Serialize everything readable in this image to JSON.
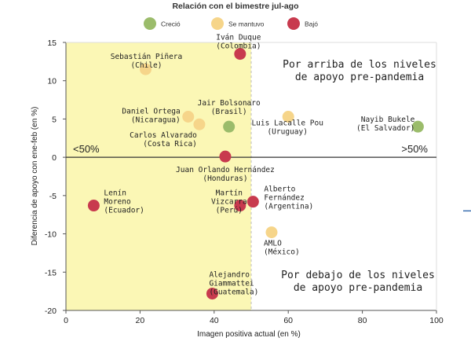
{
  "chart_data": {
    "type": "scatter",
    "title": "Relación con el bimestre jul-ago",
    "xlabel": "Imagen positiva actual (en %)",
    "ylabel": "Diferencia de apoyo con ene-feb (en %)",
    "xlim": [
      0,
      100
    ],
    "ylim": [
      -20,
      15
    ],
    "x_ticks": [
      0,
      20,
      40,
      60,
      80,
      100
    ],
    "y_ticks": [
      -20,
      -15,
      -10,
      -5,
      0,
      5,
      10,
      15
    ],
    "grid": false,
    "highlight_region": {
      "x_from": 0,
      "x_to": 50,
      "color": "#fbf7b5"
    },
    "legend": {
      "position": "top",
      "items": [
        {
          "label": "Creció",
          "color": "#9bbc6b"
        },
        {
          "label": "Se mantuvo",
          "color": "#f6d58a"
        },
        {
          "label": "Bajó",
          "color": "#c83a4e"
        }
      ]
    },
    "annotations": {
      "left_marker": "<50%",
      "right_marker": ">50%",
      "above_text": [
        "Por arriba de los niveles",
        "de apoyo pre-pandemia"
      ],
      "below_text": [
        "Por debajo de los niveles",
        "de apoyo pre-pandemia"
      ]
    },
    "series": [
      {
        "name": "Creció",
        "color": "#9bbc6b",
        "points": [
          {
            "x": 44,
            "y": 4,
            "label": [
              "Jair Bolsonaro",
              "(Brasil)"
            ]
          },
          {
            "x": 95,
            "y": 4,
            "label": [
              "Nayib Bukele",
              "(El Salvador)"
            ]
          }
        ]
      },
      {
        "name": "Se mantuvo",
        "color": "#f6d58a",
        "points": [
          {
            "x": 21.5,
            "y": 11.5,
            "label": [
              "Sebastián Piñera",
              "(Chile)"
            ]
          },
          {
            "x": 33,
            "y": 5.3,
            "label": [
              "Daniel Ortega",
              "(Nicaragua)"
            ]
          },
          {
            "x": 36,
            "y": 4.3,
            "label": [
              "Carlos Alvarado",
              "(Costa Rica)"
            ]
          },
          {
            "x": 60,
            "y": 5.3,
            "label": [
              "Luis Lacalle Pou",
              "(Uruguay)"
            ]
          },
          {
            "x": 55.5,
            "y": -9.8,
            "label": [
              "AMLO",
              "(México)"
            ]
          }
        ]
      },
      {
        "name": "Bajó",
        "color": "#c83a4e",
        "points": [
          {
            "x": 47,
            "y": 13.5,
            "label": [
              "Iván Duque",
              "(Colombia)"
            ]
          },
          {
            "x": 43,
            "y": 0.1,
            "label": [
              "Juan Orlando Hernández",
              "(Honduras)"
            ]
          },
          {
            "x": 7.5,
            "y": -6.3,
            "label": [
              "Lenín",
              "Moreno",
              "(Ecuador)"
            ]
          },
          {
            "x": 47,
            "y": -6.3,
            "label": [
              "Martín",
              "Vizcarra",
              "(Perú)"
            ]
          },
          {
            "x": 50.5,
            "y": -5.8,
            "label": [
              "Alberto",
              "Fernández",
              "(Argentina)"
            ]
          },
          {
            "x": 39.5,
            "y": -17.8,
            "label": [
              "Alejandro",
              "Giammattei",
              "(Guatemala)"
            ]
          }
        ]
      }
    ]
  }
}
